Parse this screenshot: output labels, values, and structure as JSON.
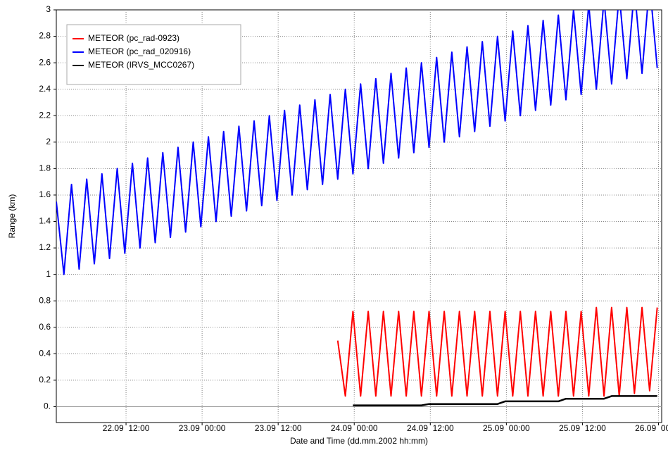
{
  "chart_data": {
    "type": "line",
    "y_label": "Range (km)",
    "x_label": "Date and Time  (dd.mm.2002  hh:mm)",
    "xlim": [
      1,
      96.5
    ],
    "xticks": [
      {
        "value": 12,
        "label": "22.09  12:00"
      },
      {
        "value": 24,
        "label": "23.09  00:00"
      },
      {
        "value": 36,
        "label": "23.09  12:00"
      },
      {
        "value": 48,
        "label": "24.09  00:00"
      },
      {
        "value": 60,
        "label": "24.09  12:00"
      },
      {
        "value": 72,
        "label": "25.09  00:00"
      },
      {
        "value": 84,
        "label": "25.09  12:00"
      },
      {
        "value": 96,
        "label": "26.09  00:00"
      }
    ],
    "ylim": [
      -0.12,
      3
    ],
    "yticks": [
      {
        "value": 0,
        "label": "0."
      },
      0.2,
      0.4,
      0.6,
      0.8,
      1,
      1.2,
      1.4,
      1.6,
      1.8,
      2,
      2.2,
      2.4,
      2.6,
      2.8,
      3
    ],
    "grid": true,
    "legend": "upper left",
    "x": [
      1,
      2.2,
      3.4,
      4.6,
      5.8,
      7,
      8.2,
      9.4,
      10.6,
      11.8,
      13,
      14.2,
      15.4,
      16.6,
      17.8,
      19,
      20.2,
      21.4,
      22.6,
      23.8,
      25,
      26.2,
      27.4,
      28.6,
      29.8,
      31,
      32.2,
      33.4,
      34.6,
      35.8,
      37,
      38.2,
      39.4,
      40.6,
      41.8,
      43,
      44.2,
      45.4,
      46.6,
      47.8,
      49,
      50.2,
      51.4,
      52.6,
      53.8,
      55,
      56.2,
      57.4,
      58.6,
      59.8,
      61,
      62.2,
      63.4,
      64.6,
      65.8,
      67,
      68.2,
      69.4,
      70.6,
      71.8,
      73,
      74.2,
      75.4,
      76.6,
      77.8,
      79,
      80.2,
      81.4,
      82.6,
      83.8,
      85,
      86.2,
      87.4,
      88.6,
      89.8,
      91,
      92.2,
      93.4,
      94.6,
      95.8
    ],
    "series": [
      {
        "name": "METEOR (pc_rad-0923)",
        "color": "#ff0000",
        "values": [
          null,
          null,
          null,
          null,
          null,
          null,
          null,
          null,
          null,
          null,
          null,
          null,
          null,
          null,
          null,
          null,
          null,
          null,
          null,
          null,
          null,
          null,
          null,
          null,
          null,
          null,
          null,
          null,
          null,
          null,
          null,
          null,
          null,
          null,
          null,
          null,
          null,
          0.5,
          0.08,
          0.72,
          0.08,
          0.72,
          0.08,
          0.72,
          0.08,
          0.72,
          0.08,
          0.72,
          0.08,
          0.72,
          0.08,
          0.72,
          0.08,
          0.72,
          0.08,
          0.72,
          0.08,
          0.72,
          0.08,
          0.72,
          0.08,
          0.72,
          0.08,
          0.72,
          0.08,
          0.72,
          0.08,
          0.72,
          0.08,
          0.72,
          0.08,
          0.75,
          0.08,
          0.75,
          0.08,
          0.75,
          0.1,
          0.75,
          0.12,
          0.75
        ]
      },
      {
        "name": "METEOR (pc_rad_020916)",
        "color": "#0000ff",
        "values": [
          1.55,
          1.0,
          1.68,
          1.04,
          1.72,
          1.08,
          1.76,
          1.12,
          1.8,
          1.16,
          1.84,
          1.2,
          1.88,
          1.24,
          1.92,
          1.28,
          1.96,
          1.32,
          2.0,
          1.36,
          2.04,
          1.4,
          2.08,
          1.44,
          2.12,
          1.48,
          2.16,
          1.52,
          2.2,
          1.56,
          2.24,
          1.6,
          2.28,
          1.64,
          2.32,
          1.68,
          2.36,
          1.72,
          2.4,
          1.76,
          2.44,
          1.8,
          2.48,
          1.84,
          2.52,
          1.88,
          2.56,
          1.92,
          2.6,
          1.96,
          2.64,
          2.0,
          2.68,
          2.04,
          2.72,
          2.08,
          2.76,
          2.12,
          2.8,
          2.16,
          2.84,
          2.2,
          2.88,
          2.24,
          2.92,
          2.28,
          2.96,
          2.32,
          3.0,
          2.36,
          3.04,
          2.4,
          3.08,
          2.44,
          3.12,
          2.48,
          3.16,
          2.52,
          3.2,
          2.56
        ]
      },
      {
        "name": "METEOR (IRVS_MCC0267)",
        "color": "#000000",
        "values": [
          null,
          null,
          null,
          null,
          null,
          null,
          null,
          null,
          null,
          null,
          null,
          null,
          null,
          null,
          null,
          null,
          null,
          null,
          null,
          null,
          null,
          null,
          null,
          null,
          null,
          null,
          null,
          null,
          null,
          null,
          null,
          null,
          null,
          null,
          null,
          null,
          null,
          null,
          null,
          0.01,
          0.01,
          0.01,
          0.01,
          0.01,
          0.01,
          0.01,
          0.01,
          0.01,
          0.01,
          0.02,
          0.02,
          0.02,
          0.02,
          0.02,
          0.02,
          0.02,
          0.02,
          0.02,
          0.02,
          0.04,
          0.04,
          0.04,
          0.04,
          0.04,
          0.04,
          0.04,
          0.04,
          0.06,
          0.06,
          0.06,
          0.06,
          0.06,
          0.06,
          0.08,
          0.08,
          0.08,
          0.08,
          0.08,
          0.08,
          0.08
        ]
      }
    ]
  }
}
